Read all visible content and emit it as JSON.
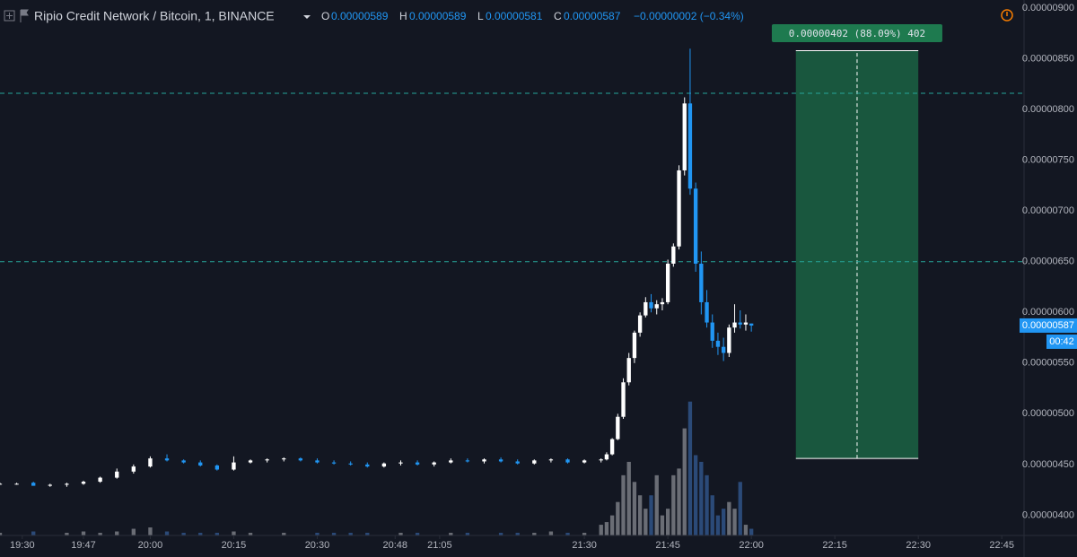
{
  "header": {
    "symbol": "Ripio Credit Network / Bitcoin, 1, BINANCE",
    "open_label": "O",
    "open": "0.00000589",
    "high_label": "H",
    "high": "0.00000589",
    "low_label": "L",
    "low": "0.00000581",
    "close_label": "C",
    "close": "0.00000587",
    "change": "−0.00000002 (−0.34%)"
  },
  "chart_data": {
    "type": "candlestick",
    "x": [
      0,
      3,
      6,
      9,
      12,
      15,
      18,
      21,
      24,
      27,
      30,
      33,
      36,
      39,
      42,
      45,
      48,
      51,
      54,
      57,
      60,
      63,
      66,
      69,
      72,
      75,
      78,
      81,
      84,
      87,
      90,
      93,
      96,
      99,
      102,
      105,
      108,
      109,
      110,
      111,
      112,
      113,
      114,
      115,
      116,
      117,
      118,
      119,
      120,
      121,
      122,
      123,
      124,
      125,
      126,
      127,
      128,
      129,
      130,
      131,
      132,
      133,
      134,
      135
    ],
    "open": [
      4.31e-06,
      4.31e-06,
      4.32e-06,
      4.29e-06,
      4.3e-06,
      4.31e-06,
      4.33e-06,
      4.37e-06,
      4.43e-06,
      4.48e-06,
      4.56e-06,
      4.54e-06,
      4.52e-06,
      4.49e-06,
      4.45e-06,
      4.52e-06,
      4.54e-06,
      4.55e-06,
      4.56e-06,
      4.54e-06,
      4.52e-06,
      4.51e-06,
      4.5e-06,
      4.48e-06,
      4.51e-06,
      4.52e-06,
      4.5e-06,
      4.52e-06,
      4.54e-06,
      4.53e-06,
      4.55e-06,
      4.53e-06,
      4.51e-06,
      4.54e-06,
      4.55e-06,
      4.52e-06,
      4.54e-06,
      4.55e-06,
      4.6e-06,
      4.75e-06,
      4.97e-06,
      5.31e-06,
      5.55e-06,
      5.8e-06,
      5.97e-06,
      6.1e-06,
      6.04e-06,
      6.08e-06,
      6.1e-06,
      6.48e-06,
      6.65e-06,
      7.4e-06,
      8.06e-06,
      7.22e-06,
      6.48e-06,
      6.1e-06,
      5.9e-06,
      5.72e-06,
      5.66e-06,
      5.6e-06,
      5.85e-06,
      5.9e-06,
      5.88e-06,
      5.89e-06
    ],
    "high": [
      4.32e-06,
      4.32e-06,
      4.33e-06,
      4.31e-06,
      4.32e-06,
      4.34e-06,
      4.38e-06,
      4.46e-06,
      4.5e-06,
      4.58e-06,
      4.6e-06,
      4.55e-06,
      4.54e-06,
      4.5e-06,
      4.58e-06,
      4.55e-06,
      4.56e-06,
      4.57e-06,
      4.57e-06,
      4.56e-06,
      4.54e-06,
      4.53e-06,
      4.52e-06,
      4.52e-06,
      4.54e-06,
      4.54e-06,
      4.53e-06,
      4.56e-06,
      4.56e-06,
      4.56e-06,
      4.57e-06,
      4.55e-06,
      4.55e-06,
      4.56e-06,
      4.56e-06,
      4.55e-06,
      4.56e-06,
      4.62e-06,
      4.76e-06,
      5e-06,
      5.35e-06,
      5.6e-06,
      5.82e-06,
      6e-06,
      6.15e-06,
      6.18e-06,
      6.12e-06,
      6.14e-06,
      6.52e-06,
      6.68e-06,
      7.45e-06,
      8.12e-06,
      8.6e-06,
      7.28e-06,
      6.6e-06,
      6.22e-06,
      5.98e-06,
      5.8e-06,
      5.75e-06,
      5.88e-06,
      6.08e-06,
      6.02e-06,
      5.98e-06,
      5.89e-06
    ],
    "low": [
      4.3e-06,
      4.3e-06,
      4.29e-06,
      4.28e-06,
      4.28e-06,
      4.3e-06,
      4.32e-06,
      4.36e-06,
      4.41e-06,
      4.47e-06,
      4.53e-06,
      4.51e-06,
      4.48e-06,
      4.44e-06,
      4.44e-06,
      4.51e-06,
      4.52e-06,
      4.53e-06,
      4.53e-06,
      4.51e-06,
      4.5e-06,
      4.49e-06,
      4.47e-06,
      4.47e-06,
      4.49e-06,
      4.49e-06,
      4.48e-06,
      4.51e-06,
      4.52e-06,
      4.51e-06,
      4.52e-06,
      4.5e-06,
      4.5e-06,
      4.52e-06,
      4.51e-06,
      4.51e-06,
      4.52e-06,
      4.54e-06,
      4.59e-06,
      4.74e-06,
      4.95e-06,
      5.28e-06,
      5.5e-06,
      5.76e-06,
      5.95e-06,
      6e-06,
      5.98e-06,
      6.02e-06,
      6.08e-06,
      6.45e-06,
      6.62e-06,
      7.35e-06,
      7.16e-06,
      6.4e-06,
      5.98e-06,
      5.85e-06,
      5.65e-06,
      5.58e-06,
      5.52e-06,
      5.56e-06,
      5.8e-06,
      5.84e-06,
      5.82e-06,
      5.81e-06
    ],
    "close": [
      4.31e-06,
      4.31e-06,
      4.29e-06,
      4.3e-06,
      4.31e-06,
      4.33e-06,
      4.37e-06,
      4.43e-06,
      4.48e-06,
      4.56e-06,
      4.54e-06,
      4.52e-06,
      4.49e-06,
      4.45e-06,
      4.52e-06,
      4.54e-06,
      4.55e-06,
      4.56e-06,
      4.54e-06,
      4.52e-06,
      4.51e-06,
      4.5e-06,
      4.48e-06,
      4.51e-06,
      4.52e-06,
      4.5e-06,
      4.52e-06,
      4.54e-06,
      4.53e-06,
      4.55e-06,
      4.53e-06,
      4.51e-06,
      4.54e-06,
      4.55e-06,
      4.52e-06,
      4.54e-06,
      4.55e-06,
      4.6e-06,
      4.75e-06,
      4.97e-06,
      5.31e-06,
      5.55e-06,
      5.8e-06,
      5.97e-06,
      6.1e-06,
      6.04e-06,
      6.08e-06,
      6.1e-06,
      6.48e-06,
      6.65e-06,
      7.4e-06,
      8.06e-06,
      7.22e-06,
      6.48e-06,
      6.1e-06,
      5.9e-06,
      5.72e-06,
      5.66e-06,
      5.6e-06,
      5.85e-06,
      5.9e-06,
      5.88e-06,
      5.9e-06,
      5.87e-06
    ],
    "volume": [
      2,
      0,
      3,
      0,
      2,
      3,
      2,
      3,
      5,
      6,
      3,
      2,
      2,
      2,
      3,
      2,
      0,
      2,
      0,
      2,
      2,
      2,
      2,
      0,
      2,
      2,
      0,
      2,
      2,
      0,
      2,
      2,
      2,
      3,
      2,
      2,
      8,
      10,
      15,
      25,
      45,
      55,
      40,
      30,
      20,
      30,
      45,
      15,
      20,
      45,
      50,
      80,
      100,
      60,
      55,
      45,
      30,
      15,
      20,
      25,
      20,
      40,
      8,
      5
    ],
    "up_color": "#ffffff",
    "down_color": "#2196f3",
    "volume_up_color": "#6a6d75",
    "volume_down_color": "#2b4a78",
    "xlim": [
      0,
      184
    ],
    "xticks": [
      {
        "value": 4,
        "label": "19:30"
      },
      {
        "value": 15,
        "label": "19:47"
      },
      {
        "value": 27,
        "label": "20:00"
      },
      {
        "value": 42,
        "label": "20:15"
      },
      {
        "value": 57,
        "label": "20:30"
      },
      {
        "value": 71,
        "label": "20:48"
      },
      {
        "value": 79,
        "label": "21:05"
      },
      {
        "value": 105,
        "label": "21:30"
      },
      {
        "value": 120,
        "label": "21:45"
      },
      {
        "value": 135,
        "label": "22:00"
      },
      {
        "value": 150,
        "label": "22:15"
      },
      {
        "value": 165,
        "label": "22:30"
      },
      {
        "value": 180,
        "label": "22:45"
      }
    ],
    "ylim": [
      3.8e-06,
      9.08e-06
    ],
    "yticks": [
      {
        "value": 4e-06,
        "label": "0.00000400"
      },
      {
        "value": 4.5e-06,
        "label": "0.00000450"
      },
      {
        "value": 5e-06,
        "label": "0.00000500"
      },
      {
        "value": 5.5e-06,
        "label": "0.00000550"
      },
      {
        "value": 6e-06,
        "label": "0.00000600"
      },
      {
        "value": 6.5e-06,
        "label": "0.00000650"
      },
      {
        "value": 7e-06,
        "label": "0.00000700"
      },
      {
        "value": 7.5e-06,
        "label": "0.00000750"
      },
      {
        "value": 8e-06,
        "label": "0.00000800"
      },
      {
        "value": 8.5e-06,
        "label": "0.00000850"
      },
      {
        "value": 9e-06,
        "label": "0.00000900"
      }
    ],
    "volume_ylim": [
      0,
      400
    ],
    "hlines": [
      8.16e-06,
      6.5e-06
    ],
    "last_price": {
      "value": 5.87e-06,
      "label": "0.00000587"
    },
    "countdown": "00:42",
    "measure": {
      "x": [
        143,
        165
      ],
      "from": 4.56e-06,
      "to": 8.58e-06,
      "label": "0.00000402 (88.09%) 402"
    }
  }
}
